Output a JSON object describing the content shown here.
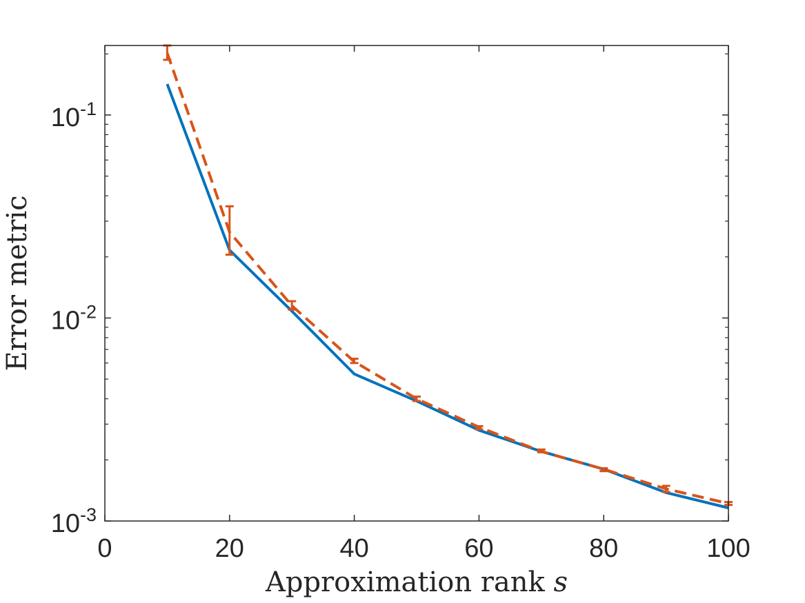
{
  "chart_data": {
    "type": "line",
    "title": "",
    "xlabel": "Approximation rank",
    "xlabel_symbol": "s",
    "ylabel": "Error metric",
    "xlim": [
      0,
      100
    ],
    "ylim": [
      0.001,
      0.22
    ],
    "yscale": "log",
    "grid": false,
    "box": true,
    "x_ticks": [
      0,
      20,
      40,
      60,
      80,
      100
    ],
    "x_tick_labels": [
      "0",
      "20",
      "40",
      "60",
      "80",
      "100"
    ],
    "y_ticks": [
      0.001,
      0.01,
      0.1
    ],
    "y_tick_labels": [
      {
        "base": "10",
        "exp": "-3"
      },
      {
        "base": "10",
        "exp": "-2"
      },
      {
        "base": "10",
        "exp": "-1"
      }
    ],
    "x": [
      10,
      20,
      30,
      40,
      50,
      60,
      70,
      80,
      90,
      100
    ],
    "series": [
      {
        "style": "solid",
        "color": "#0072BD",
        "values": [
          0.142,
          0.0216,
          0.0108,
          0.0053,
          0.0039,
          0.0028,
          0.0022,
          0.0018,
          0.00138,
          0.00116
        ]
      },
      {
        "style": "dashed",
        "color": "#D95319",
        "values": [
          0.202,
          0.0265,
          0.0115,
          0.0061,
          0.004,
          0.0029,
          0.0022,
          0.0018,
          0.00144,
          0.00122
        ],
        "err_low": [
          0.187,
          0.0205,
          0.011,
          0.006,
          0.0039,
          0.00283,
          0.00218,
          0.00176,
          0.00139,
          0.0012
        ],
        "err_high": [
          0.22,
          0.0355,
          0.0121,
          0.0063,
          0.0041,
          0.00293,
          0.00225,
          0.00182,
          0.00149,
          0.00124
        ]
      }
    ]
  }
}
